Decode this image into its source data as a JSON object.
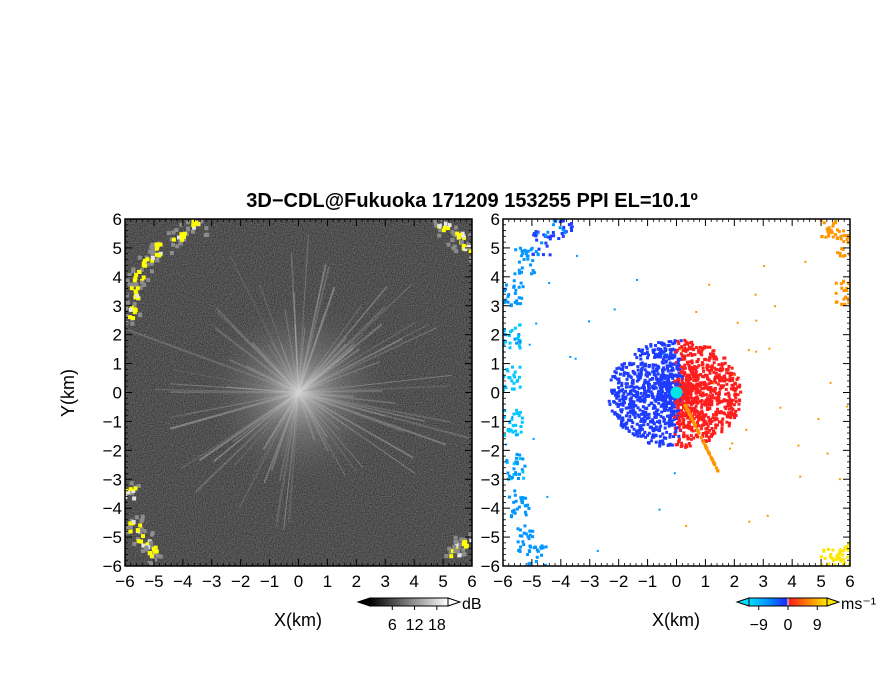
{
  "title": "3D−CDL@Fukuoka 171209 153255 PPI EL=10.1º",
  "chart_data": [
    {
      "type": "heatmap",
      "panel": "left",
      "description_quantity": "reflectivity",
      "xlabel": "X(km)",
      "ylabel": "Y(km)",
      "xlim": [
        -6,
        6
      ],
      "ylim": [
        -6,
        6
      ],
      "xticks": [
        "−6",
        "−5",
        "−4",
        "−3",
        "−2",
        "−1",
        "0",
        "1",
        "2",
        "3",
        "4",
        "5",
        "6"
      ],
      "yticks": [
        "6",
        "5",
        "4",
        "3",
        "2",
        "1",
        "0",
        "−1",
        "−2",
        "−3",
        "−4",
        "−5",
        "−6"
      ],
      "colorbar": {
        "labels": [
          "6",
          "12",
          "18"
        ],
        "values": [
          6,
          12,
          18
        ],
        "unit": "dB",
        "range": [
          0,
          21
        ]
      },
      "palette": {
        "background": "#303030",
        "low": "#2a2a2a",
        "high": "#cfcfcf",
        "max": "#ffff00"
      },
      "echo_points": [
        {
          "x": -3.6,
          "y": 5.8
        },
        {
          "x": -4.2,
          "y": 5.5
        },
        {
          "x": -4.8,
          "y": 5.0
        },
        {
          "x": -5.3,
          "y": 4.6
        },
        {
          "x": -5.6,
          "y": 4.1
        },
        {
          "x": -5.8,
          "y": 3.5
        },
        {
          "x": -5.9,
          "y": 2.8
        },
        {
          "x": -5.9,
          "y": -3.4
        },
        {
          "x": -5.7,
          "y": -4.6
        },
        {
          "x": -5.4,
          "y": -5.1
        },
        {
          "x": -5.1,
          "y": -5.5
        },
        {
          "x": 5.0,
          "y": 5.8
        },
        {
          "x": 5.5,
          "y": 5.4
        },
        {
          "x": 5.7,
          "y": 5.0
        },
        {
          "x": 5.4,
          "y": -5.4
        },
        {
          "x": 5.7,
          "y": -5.1
        }
      ]
    },
    {
      "type": "heatmap",
      "panel": "right",
      "description_quantity": "doppler velocity",
      "xlabel": "X(km)",
      "ylabel": "",
      "xlim": [
        -6,
        6
      ],
      "ylim": [
        -6,
        6
      ],
      "xticks": [
        "−6",
        "−5",
        "−4",
        "−3",
        "−2",
        "−1",
        "0",
        "1",
        "2",
        "3",
        "4",
        "5",
        "6"
      ],
      "yticks": [
        "6",
        "5",
        "4",
        "3",
        "2",
        "1",
        "0",
        "−1",
        "−2",
        "−3",
        "−4",
        "−5",
        "−6"
      ],
      "colorbar": {
        "labels": [
          "−9",
          "0",
          "9"
        ],
        "values": [
          -9,
          0,
          9
        ],
        "unit": "ms⁻¹",
        "range": [
          -12,
          12
        ]
      },
      "palette": {
        "neg_far": "#00c8ff",
        "neg": "#1e3cff",
        "zero": "#b4b4b4",
        "pos": "#ff1e1e",
        "pos_far": "#ff9600",
        "pos_max": "#ffe600",
        "center": "#00e6e6"
      },
      "edge_echo": [
        {
          "x": -4.0,
          "y": 5.8,
          "v": -6
        },
        {
          "x": -4.7,
          "y": 5.2,
          "v": -6
        },
        {
          "x": -5.3,
          "y": 4.6,
          "v": -7
        },
        {
          "x": -5.7,
          "y": 3.5,
          "v": -8
        },
        {
          "x": -5.8,
          "y": 2.0,
          "v": -9
        },
        {
          "x": -5.8,
          "y": 0.5,
          "v": -10
        },
        {
          "x": -5.7,
          "y": -1.0,
          "v": -10
        },
        {
          "x": -5.6,
          "y": -2.5,
          "v": -9
        },
        {
          "x": -5.5,
          "y": -3.8,
          "v": -8
        },
        {
          "x": -5.2,
          "y": -5.0,
          "v": -7
        },
        {
          "x": -4.9,
          "y": -5.7,
          "v": -7
        },
        {
          "x": 5.3,
          "y": 5.8,
          "v": 7
        },
        {
          "x": 5.8,
          "y": 5.2,
          "v": 8
        },
        {
          "x": 5.8,
          "y": 3.5,
          "v": 9
        },
        {
          "x": 5.6,
          "y": -5.6,
          "v": 11
        },
        {
          "x": 5.3,
          "y": -5.8,
          "v": 11
        }
      ]
    }
  ]
}
